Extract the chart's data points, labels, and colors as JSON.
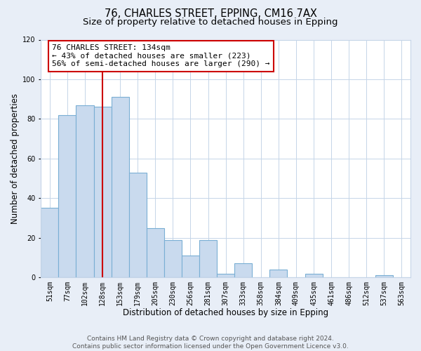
{
  "title": "76, CHARLES STREET, EPPING, CM16 7AX",
  "subtitle": "Size of property relative to detached houses in Epping",
  "xlabel": "Distribution of detached houses by size in Epping",
  "ylabel": "Number of detached properties",
  "bar_labels": [
    "51sqm",
    "77sqm",
    "102sqm",
    "128sqm",
    "153sqm",
    "179sqm",
    "205sqm",
    "230sqm",
    "256sqm",
    "281sqm",
    "307sqm",
    "333sqm",
    "358sqm",
    "384sqm",
    "409sqm",
    "435sqm",
    "461sqm",
    "486sqm",
    "512sqm",
    "537sqm",
    "563sqm"
  ],
  "bar_values": [
    35,
    82,
    87,
    86,
    91,
    53,
    25,
    19,
    11,
    19,
    2,
    7,
    0,
    4,
    0,
    2,
    0,
    0,
    0,
    1,
    0
  ],
  "bar_color": "#c9daee",
  "bar_edge_color": "#7aafd4",
  "vline_x_index": 3,
  "vline_color": "#cc0000",
  "annotation_text": "76 CHARLES STREET: 134sqm\n← 43% of detached houses are smaller (223)\n56% of semi-detached houses are larger (290) →",
  "annotation_box_color": "#ffffff",
  "annotation_box_edge": "#cc0000",
  "ylim": [
    0,
    120
  ],
  "yticks": [
    0,
    20,
    40,
    60,
    80,
    100,
    120
  ],
  "footer": "Contains HM Land Registry data © Crown copyright and database right 2024.\nContains public sector information licensed under the Open Government Licence v3.0.",
  "bg_color": "#e8eef7",
  "plot_bg_color": "#ffffff",
  "title_fontsize": 10.5,
  "subtitle_fontsize": 9.5,
  "axis_label_fontsize": 8.5,
  "tick_fontsize": 7,
  "annotation_fontsize": 8,
  "footer_fontsize": 6.5
}
